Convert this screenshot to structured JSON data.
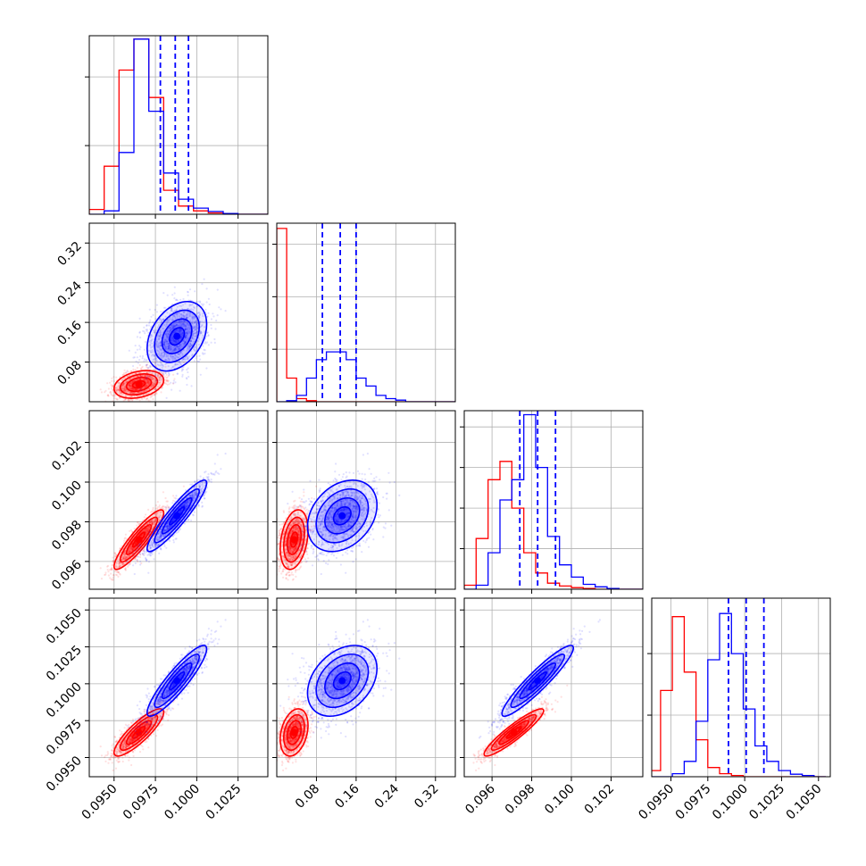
{
  "chart_data": {
    "type": "corner",
    "title": "",
    "parameters": [
      "",
      "",
      "",
      ""
    ],
    "colors": {
      "series_a": "#ff0000",
      "series_b": "#0000ff"
    },
    "grid": true,
    "series": [
      {
        "color": "#ff0000",
        "means": [
          0.0965,
          0.035,
          0.0971,
          0.0967
        ],
        "stds": [
          0.00075,
          0.014,
          0.00075,
          0.0008
        ],
        "corr": [
          [
            1,
            0.3,
            0.9,
            0.85
          ],
          [
            0.3,
            1,
            0.3,
            0.3
          ],
          [
            0.9,
            0.3,
            1,
            0.92
          ],
          [
            0.85,
            0.3,
            0.92,
            1
          ]
        ]
      },
      {
        "color": "#0000ff",
        "means": [
          0.0988,
          0.132,
          0.0983,
          0.1002
        ],
        "stds": [
          0.0009,
          0.035,
          0.0009,
          0.0012
        ],
        "corr": [
          [
            1,
            0.35,
            0.92,
            0.9
          ],
          [
            0.35,
            1,
            0.3,
            0.35
          ],
          [
            0.92,
            0.3,
            1,
            0.93
          ],
          [
            0.9,
            0.35,
            0.93,
            1
          ]
        ]
      }
    ],
    "quantile_lines": {
      "color": "#0000ff",
      "values": [
        [
          0.0978,
          0.0987,
          0.0995
        ],
        [
          0.092,
          0.128,
          0.16
        ],
        [
          0.0974,
          0.0983,
          0.0992
        ],
        [
          0.0989,
          0.1001,
          0.1013
        ]
      ]
    },
    "histograms": [
      {
        "edges": [
          0.0935,
          0.0944,
          0.0953,
          0.0962,
          0.0971,
          0.098,
          0.0989,
          0.0998,
          0.1007,
          0.1016,
          0.1025,
          0.1034,
          0.1043
        ],
        "series_a": [
          0.07,
          0.7,
          2.1,
          2.55,
          1.7,
          0.35,
          0.12,
          0.05,
          0.02,
          0.0,
          0.0,
          0.0
        ],
        "series_b": [
          0.0,
          0.05,
          0.9,
          2.55,
          1.5,
          0.6,
          0.22,
          0.09,
          0.04,
          0.01,
          0.0,
          0.0
        ]
      },
      {
        "edges": [
          0.0,
          0.02,
          0.04,
          0.06,
          0.08,
          0.1,
          0.12,
          0.14,
          0.16,
          0.18,
          0.2,
          0.22,
          0.24,
          0.26,
          0.28,
          0.3,
          0.32,
          0.34,
          0.36,
          0.38
        ],
        "series_a": [
          3.3,
          0.45,
          0.06,
          0.02,
          0.0,
          0.0,
          0.0,
          0.0,
          0.0,
          0.0,
          0.0,
          0.0,
          0.0,
          0.0,
          0.0,
          0.0,
          0.0,
          0.0,
          0.0
        ],
        "series_b": [
          0.0,
          0.02,
          0.12,
          0.45,
          0.8,
          0.95,
          0.95,
          0.8,
          0.45,
          0.3,
          0.12,
          0.06,
          0.03,
          0.0,
          0.0,
          0.0,
          0.0,
          0.0,
          0.0
        ]
      },
      {
        "edges": [
          0.0946,
          0.0952,
          0.0958,
          0.0964,
          0.097,
          0.0976,
          0.0982,
          0.0988,
          0.0994,
          0.1,
          0.1006,
          0.1012,
          0.1018,
          0.1024,
          0.103,
          0.1036
        ],
        "series_a": [
          0.1,
          1.25,
          2.7,
          3.15,
          2.0,
          0.9,
          0.4,
          0.15,
          0.08,
          0.04,
          0.02,
          0.0,
          0.0,
          0.0,
          0.0
        ],
        "series_b": [
          0.0,
          0.1,
          0.9,
          2.2,
          2.7,
          4.3,
          3.0,
          1.3,
          0.6,
          0.3,
          0.12,
          0.06,
          0.02,
          0.0,
          0.0
        ]
      },
      {
        "edges": [
          0.0935,
          0.0943,
          0.0951,
          0.0959,
          0.0967,
          0.0975,
          0.0983,
          0.0991,
          0.0999,
          0.1007,
          0.1015,
          0.1023,
          0.1031,
          0.1039,
          0.1047,
          0.1055
        ],
        "series_a": [
          0.1,
          1.4,
          2.6,
          1.7,
          0.6,
          0.15,
          0.05,
          0.02,
          0.0,
          0.0,
          0.0,
          0.0,
          0.0,
          0.0,
          0.0
        ],
        "series_b": [
          0.0,
          0.0,
          0.05,
          0.25,
          0.9,
          1.9,
          2.65,
          2.0,
          1.1,
          0.5,
          0.25,
          0.1,
          0.04,
          0.02,
          0.0
        ]
      }
    ],
    "axes": [
      {
        "range": [
          0.0935,
          0.1043
        ],
        "ticks": [
          0.095,
          0.0975,
          0.1,
          0.1025
        ],
        "tick_labels": [
          "0.0950",
          "0.0975",
          "0.1000",
          "0.1025"
        ]
      },
      {
        "range": [
          0.0,
          0.36
        ],
        "ticks": [
          0.08,
          0.16,
          0.24,
          0.32
        ],
        "tick_labels": [
          "0.08",
          "0.16",
          "0.24",
          "0.32"
        ]
      },
      {
        "range": [
          0.0946,
          0.1036
        ],
        "ticks": [
          0.096,
          0.098,
          0.1,
          0.102
        ],
        "tick_labels": [
          "0.096",
          "0.098",
          "0.100",
          "0.102"
        ]
      },
      {
        "range": [
          0.0937,
          0.1058
        ],
        "ticks": [
          0.095,
          0.0975,
          0.1,
          0.1025,
          0.105
        ],
        "tick_labels": [
          "0.0950",
          "0.0975",
          "0.1000",
          "0.1025",
          "0.1050"
        ]
      }
    ],
    "hist_ylim": [
      [
        0,
        2.6
      ],
      [
        0,
        3.4
      ],
      [
        0,
        4.4
      ],
      [
        0,
        2.9
      ]
    ],
    "hist_yticks": [
      [
        1.0,
        2.0
      ],
      [
        1.0,
        2.0,
        3.0
      ],
      [
        1.0,
        2.0,
        3.0,
        4.0
      ],
      [
        1.0,
        2.0
      ]
    ],
    "scatter": {
      "points_per_series": 1400,
      "opacity": 0.12
    },
    "contour_levels_sigma": [
      0.5,
      1.0,
      1.5,
      2.0
    ]
  }
}
